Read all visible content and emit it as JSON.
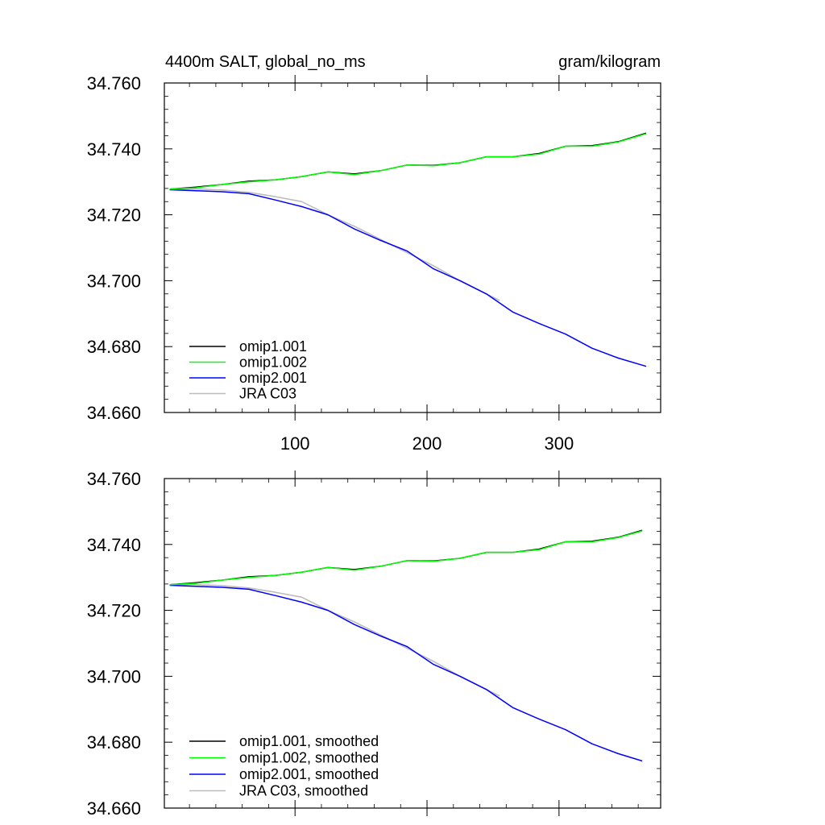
{
  "header": {
    "left_title": "4400m SALT, global_no_ms",
    "right_title": "gram/kilogram"
  },
  "chart_data": [
    {
      "type": "line",
      "panel": "top",
      "xlim": [
        1,
        377
      ],
      "ylim": [
        34.66,
        34.76
      ],
      "x_ticks": [
        100,
        200,
        300
      ],
      "x_tick_labels": [
        "100",
        "200",
        "300"
      ],
      "y_ticks": [
        34.66,
        34.68,
        34.7,
        34.72,
        34.74,
        34.76
      ],
      "y_tick_labels": [
        "34.660",
        "34.680",
        "34.700",
        "34.720",
        "34.740",
        "34.760"
      ],
      "legend_position": "bottom-left",
      "series": [
        {
          "name": "omip1.001",
          "color": "#000000",
          "x": [
            5,
            25,
            45,
            65,
            85,
            105,
            125,
            145,
            165,
            185,
            205,
            225,
            245,
            265,
            285,
            305,
            325,
            345,
            366
          ],
          "y": [
            34.7278,
            34.7284,
            34.7292,
            34.7302,
            34.7306,
            34.7316,
            34.733,
            34.7324,
            34.7334,
            34.7351,
            34.735,
            34.7358,
            34.7376,
            34.7376,
            34.7386,
            34.7408,
            34.741,
            34.7422,
            34.7448
          ]
        },
        {
          "name": "omip1.002",
          "color": "#00ff00",
          "x": [
            5,
            25,
            45,
            65,
            85,
            105,
            125,
            145,
            165,
            185,
            205,
            225,
            245,
            265,
            285,
            305,
            325,
            345,
            366
          ],
          "y": [
            34.7278,
            34.7282,
            34.7292,
            34.73,
            34.7306,
            34.7316,
            34.733,
            34.7322,
            34.7334,
            34.7351,
            34.7349,
            34.7358,
            34.7376,
            34.7376,
            34.7384,
            34.7408,
            34.7408,
            34.7421,
            34.7446
          ]
        },
        {
          "name": "omip2.001",
          "color": "#0000ff",
          "x": [
            5,
            25,
            45,
            65,
            85,
            105,
            125,
            145,
            165,
            185,
            205,
            225,
            245,
            265,
            285,
            305,
            325,
            345,
            366
          ],
          "y": [
            34.7276,
            34.7273,
            34.727,
            34.7264,
            34.7245,
            34.7225,
            34.72,
            34.7157,
            34.7122,
            34.709,
            34.7036,
            34.7,
            34.696,
            34.6905,
            34.687,
            34.6838,
            34.6795,
            34.6765,
            34.674
          ]
        },
        {
          "name": "JRA C03",
          "color": "#bdbdbd",
          "x": [
            5,
            25,
            45,
            65,
            85,
            105,
            125,
            145,
            165,
            185,
            205,
            225,
            245,
            255
          ],
          "y": [
            34.7278,
            34.7278,
            34.7275,
            34.7268,
            34.7255,
            34.724,
            34.72,
            34.7165,
            34.7125,
            34.7085,
            34.7045,
            34.7,
            34.696,
            34.694
          ]
        }
      ]
    },
    {
      "type": "line",
      "panel": "bottom",
      "xlim": [
        1,
        377
      ],
      "ylim": [
        34.66,
        34.76
      ],
      "y_ticks": [
        34.66,
        34.68,
        34.7,
        34.72,
        34.74,
        34.76
      ],
      "y_tick_labels": [
        "34.660",
        "34.680",
        "34.700",
        "34.720",
        "34.740",
        "34.760"
      ],
      "legend_position": "bottom-left",
      "series": [
        {
          "name": "omip1.001, smoothed",
          "color": "#000000",
          "x": [
            5,
            25,
            45,
            65,
            85,
            105,
            125,
            145,
            165,
            185,
            205,
            225,
            245,
            265,
            285,
            305,
            325,
            345,
            363
          ],
          "y": [
            34.7278,
            34.7284,
            34.7292,
            34.7302,
            34.7306,
            34.7316,
            34.733,
            34.7324,
            34.7334,
            34.7351,
            34.735,
            34.7358,
            34.7376,
            34.7376,
            34.7386,
            34.7408,
            34.741,
            34.7422,
            34.7443
          ]
        },
        {
          "name": "omip1.002, smoothed",
          "color": "#00ff00",
          "x": [
            5,
            25,
            45,
            65,
            85,
            105,
            125,
            145,
            165,
            185,
            205,
            225,
            245,
            265,
            285,
            305,
            325,
            345,
            363
          ],
          "y": [
            34.7278,
            34.7282,
            34.7292,
            34.73,
            34.7306,
            34.7316,
            34.733,
            34.7322,
            34.7334,
            34.7351,
            34.7349,
            34.7358,
            34.7376,
            34.7376,
            34.7384,
            34.7408,
            34.7408,
            34.7421,
            34.7441
          ]
        },
        {
          "name": "omip2.001, smoothed",
          "color": "#0000ff",
          "x": [
            5,
            25,
            45,
            65,
            85,
            105,
            125,
            145,
            165,
            185,
            205,
            225,
            245,
            265,
            285,
            305,
            325,
            345,
            363
          ],
          "y": [
            34.7276,
            34.7273,
            34.727,
            34.7264,
            34.7245,
            34.7225,
            34.72,
            34.7157,
            34.7122,
            34.709,
            34.7036,
            34.7,
            34.696,
            34.6905,
            34.687,
            34.6838,
            34.6795,
            34.6765,
            34.6743
          ]
        },
        {
          "name": "JRA C03, smoothed",
          "color": "#bdbdbd",
          "x": [
            5,
            25,
            45,
            65,
            85,
            105,
            125,
            145,
            165,
            185,
            205,
            225,
            245,
            255
          ],
          "y": [
            34.7278,
            34.7278,
            34.7275,
            34.7268,
            34.7255,
            34.724,
            34.72,
            34.7165,
            34.7125,
            34.7085,
            34.7045,
            34.7,
            34.696,
            34.694
          ]
        }
      ]
    }
  ]
}
